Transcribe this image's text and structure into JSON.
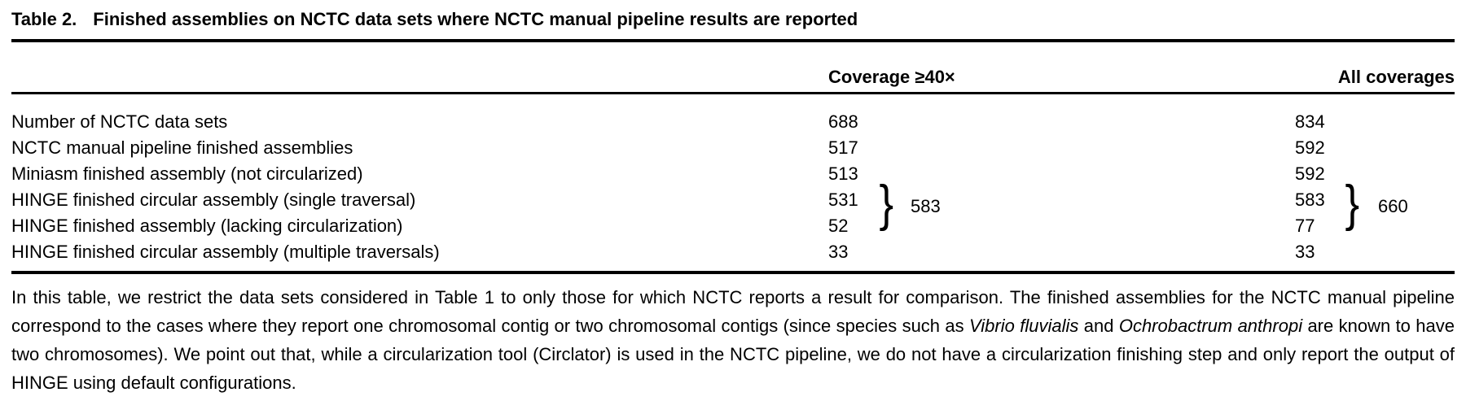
{
  "table": {
    "title_label": "Table 2.",
    "title_text": "Finished assemblies on NCTC data sets where NCTC manual pipeline results are reported",
    "columns": [
      "Coverage ≥40×",
      "All coverages"
    ],
    "rows": [
      {
        "label": "Number of NCTC data sets",
        "coverage_40x": "688",
        "all_coverages": "834"
      },
      {
        "label": "NCTC manual pipeline finished assemblies",
        "coverage_40x": "517",
        "all_coverages": "592"
      },
      {
        "label": "Miniasm finished assembly (not circularized)",
        "coverage_40x": "513",
        "all_coverages": "592"
      },
      {
        "label": "HINGE finished circular assembly (single traversal)",
        "coverage_40x": "531",
        "all_coverages": "583"
      },
      {
        "label": "HINGE finished assembly (lacking circularization)",
        "coverage_40x": "52",
        "all_coverages": "77"
      },
      {
        "label": "HINGE finished circular assembly (multiple traversals)",
        "coverage_40x": "33",
        "all_coverages": "33"
      }
    ],
    "brace_groups": {
      "rows_spanned": [
        3,
        4
      ],
      "glyph": "}",
      "coverage_40x_total": "583",
      "all_coverages_total": "660"
    }
  },
  "footnote": {
    "part1": "In this table, we restrict the data sets considered in Table 1 to only those for which NCTC reports a result for comparison. The finished assemblies for the NCTC manual pipeline correspond to the cases where they report one chromosomal contig or two chromosomal contigs (since species such as ",
    "species1": "Vibrio fluvialis",
    "part2": " and ",
    "species2": "Ochrobactrum anthropi",
    "part3": " are known to have two chromosomes). We point out that, while a circularization tool (Circlator) is used in the NCTC pipeline, we do not have a circularization finishing step and only report the output of HINGE using default configurations."
  }
}
